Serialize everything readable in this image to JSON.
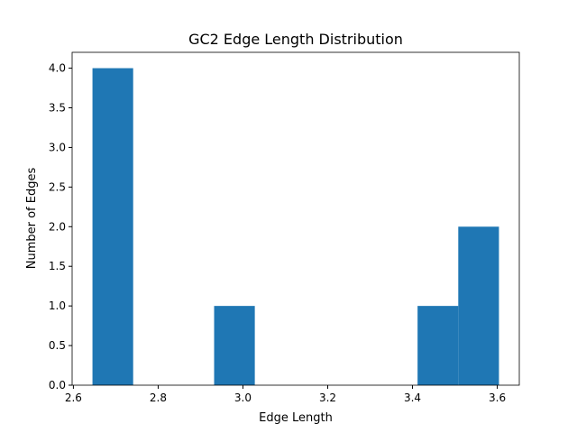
{
  "chart_data": {
    "type": "histogram",
    "title": "GC2 Edge Length Distribution",
    "xlabel": "Edge Length",
    "ylabel": "Number of Edges",
    "bins": [
      2.645,
      2.741,
      2.837,
      2.932,
      3.028,
      3.124,
      3.22,
      3.316,
      3.412,
      3.508,
      3.604
    ],
    "counts": [
      4,
      0,
      0,
      1,
      0,
      0,
      0,
      0,
      1,
      2
    ],
    "color": "#1f77b4",
    "xlim": [
      2.597,
      3.652
    ],
    "xticks": [
      {
        "value": 2.6,
        "label": "2.6"
      },
      {
        "value": 2.8,
        "label": "2.8"
      },
      {
        "value": 3.0,
        "label": "3.0"
      },
      {
        "value": 3.2,
        "label": "3.2"
      },
      {
        "value": 3.4,
        "label": "3.4"
      },
      {
        "value": 3.6,
        "label": "3.6"
      }
    ],
    "ylim": [
      0,
      4.2
    ],
    "yticks": [
      {
        "value": 0,
        "label": "0.0"
      },
      {
        "value": 0.5,
        "label": "0.5"
      },
      {
        "value": 1,
        "label": "1.0"
      },
      {
        "value": 1.5,
        "label": "1.5"
      },
      {
        "value": 2,
        "label": "2.0"
      },
      {
        "value": 2.5,
        "label": "2.5"
      },
      {
        "value": 3,
        "label": "3.0"
      },
      {
        "value": 3.5,
        "label": "3.5"
      },
      {
        "value": 4,
        "label": "4.0"
      }
    ]
  }
}
